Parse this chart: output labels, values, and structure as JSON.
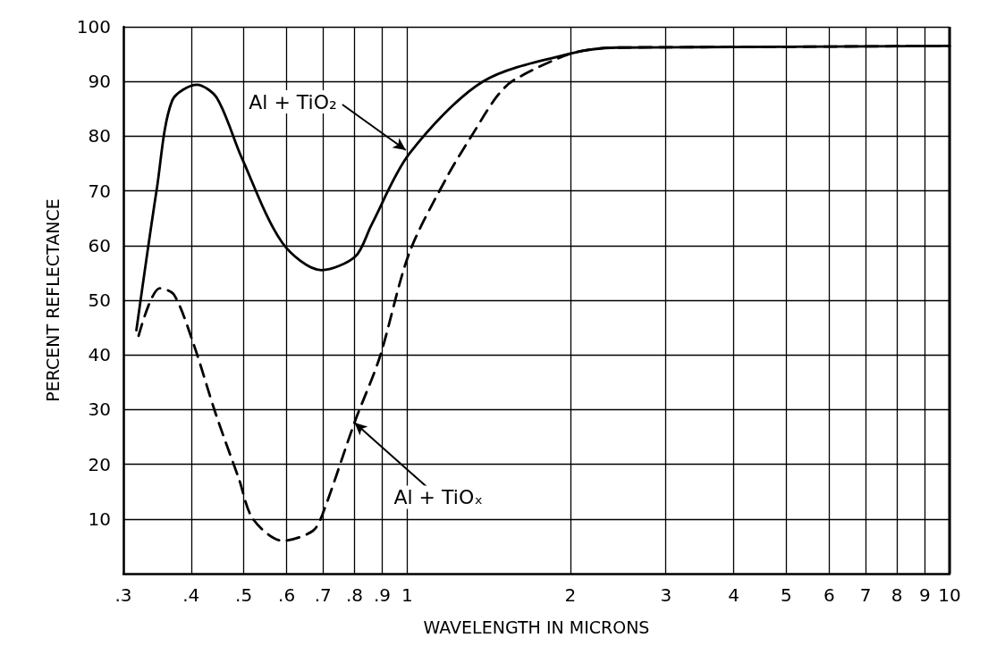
{
  "chart_data": {
    "type": "line",
    "xlabel": "WAVELENGTH IN MICRONS",
    "ylabel": "PERCENT REFLECTANCE",
    "log": "x",
    "xlim": [
      0.3,
      10
    ],
    "ylim": [
      0,
      100
    ],
    "xticks": [
      {
        "value": 0.3,
        "label": ".3"
      },
      {
        "value": 0.4,
        "label": ".4"
      },
      {
        "value": 0.5,
        "label": ".5"
      },
      {
        "value": 0.6,
        "label": ".6"
      },
      {
        "value": 0.7,
        "label": ".7"
      },
      {
        "value": 0.8,
        "label": ".8"
      },
      {
        "value": 0.9,
        "label": ".9"
      },
      1,
      2,
      3,
      4,
      5,
      6,
      7,
      8,
      9,
      10
    ],
    "yticks": [
      10,
      20,
      30,
      40,
      50,
      60,
      70,
      80,
      90,
      100
    ],
    "grid": true,
    "legend": false,
    "marker": "none",
    "series": [
      {
        "name": "Al + TiO₂",
        "color": "#000000",
        "line_style": "solid",
        "x": [
          0.317,
          0.346,
          0.369,
          0.41,
          0.446,
          0.496,
          0.589,
          0.696,
          0.803,
          0.86,
          1.01,
          1.38,
          2.02,
          2.44,
          4,
          10
        ],
        "values": [
          44.5,
          70.6,
          86.5,
          89.4,
          87,
          76,
          60.5,
          55.5,
          58,
          63.8,
          76.8,
          90,
          95.2,
          96.2,
          96.3,
          96.5
        ]
      },
      {
        "name": "Al + TiOₓ",
        "color": "#000000",
        "line_style": "dashed",
        "x": [
          0.32,
          0.35,
          0.372,
          0.405,
          0.444,
          0.49,
          0.52,
          0.59,
          0.67,
          0.7,
          0.8,
          0.89,
          1.01,
          1.19,
          1.32,
          1.46,
          1.57,
          2.02,
          2.44,
          4,
          10
        ],
        "values": [
          43.5,
          52.2,
          51,
          41.7,
          29.2,
          17.3,
          10,
          6,
          7.8,
          11.1,
          27.6,
          39.5,
          58.7,
          72.9,
          80.3,
          87.1,
          90.2,
          95.2,
          96.2,
          96.3,
          96.5
        ]
      }
    ]
  }
}
